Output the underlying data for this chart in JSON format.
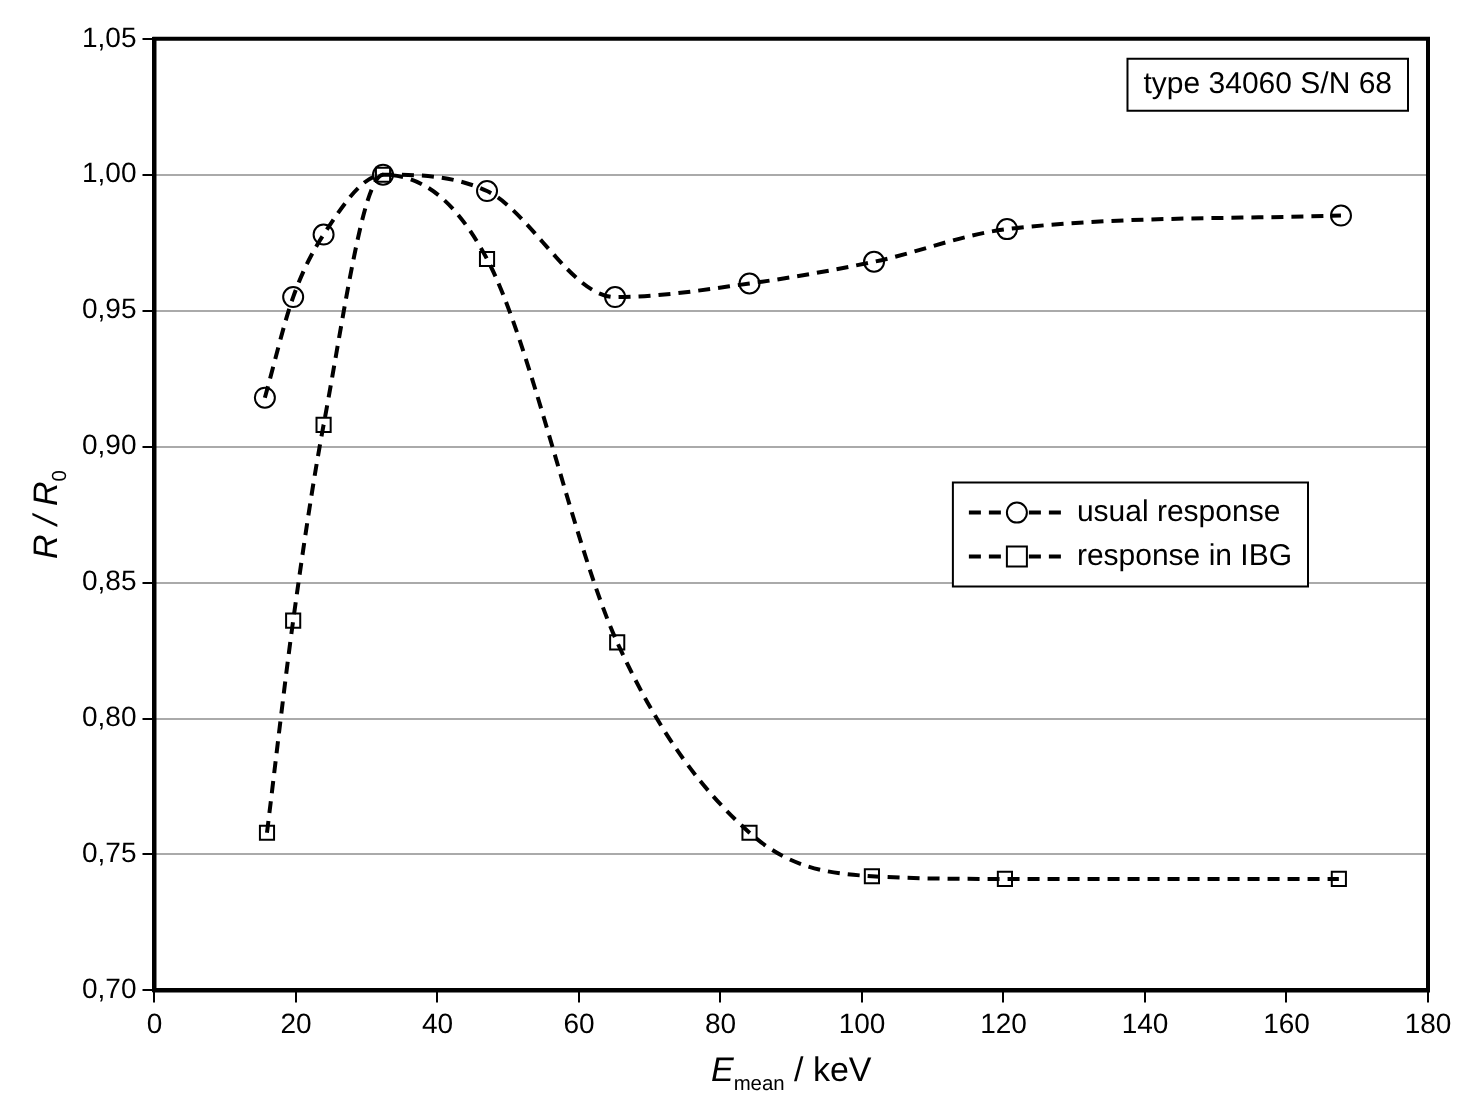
{
  "chart_data": {
    "type": "line",
    "xlabel": "E$_{mean}$ / keV",
    "ylabel": "R / R$_{0}$",
    "annotations": [
      "type 34060 S/N 68"
    ],
    "series": [
      {
        "name": "usual response",
        "color": "#000000",
        "marker": "circle",
        "line_style": "dashed",
        "x": [
          15.6,
          19.6,
          23.9,
          32.3,
          47,
          65.1,
          84.1,
          101.7,
          120.5,
          167.7
        ],
        "values": [
          0.918,
          0.955,
          0.978,
          1.0,
          0.994,
          0.955,
          0.96,
          0.968,
          0.98,
          0.985
        ]
      },
      {
        "name": "response in IBG",
        "color": "#000000",
        "marker": "square",
        "line_style": "dashed",
        "x": [
          15.9,
          19.6,
          23.9,
          32.3,
          47,
          65.4,
          84.1,
          101.4,
          120.2,
          167.4
        ],
        "values": [
          0.758,
          0.836,
          0.908,
          1.0,
          0.969,
          0.828,
          0.758,
          0.742,
          0.741,
          0.741
        ]
      }
    ],
    "xlim": [
      0,
      180
    ],
    "xticks": [
      0,
      20,
      40,
      60,
      80,
      100,
      120,
      140,
      160,
      180
    ],
    "ylim": [
      0.7,
      1.05
    ],
    "yticks": [
      {
        "value": 0.7,
        "label": "0,70"
      },
      {
        "value": 0.75,
        "label": "0,75"
      },
      {
        "value": 0.8,
        "label": "0,80"
      },
      {
        "value": 0.85,
        "label": "0,85"
      },
      {
        "value": 0.9,
        "label": "0,90"
      },
      {
        "value": 0.95,
        "label": "0,95"
      },
      {
        "value": 1.0,
        "label": "1,00"
      },
      {
        "value": 1.05,
        "label": "1,05"
      }
    ],
    "grid": "y",
    "legend": "right"
  }
}
